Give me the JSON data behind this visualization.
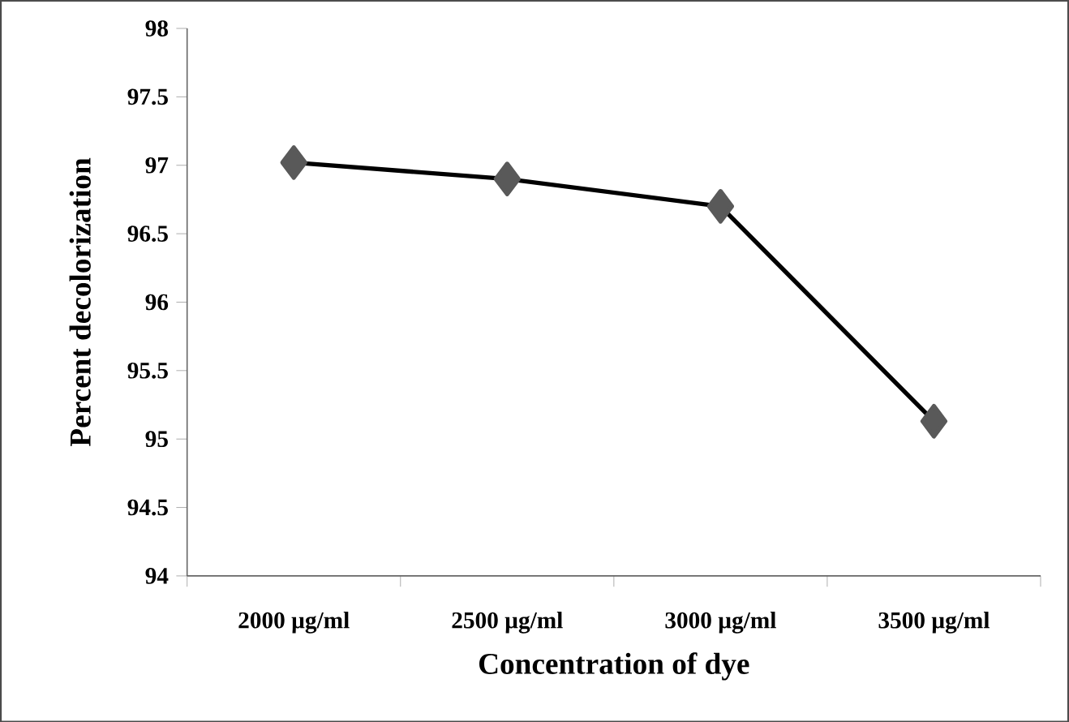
{
  "chart_data": {
    "type": "line",
    "xlabel": "Concentration of dye",
    "ylabel": "Percent decolorization",
    "categories": [
      "2000 µg/ml",
      "2500 µg/ml",
      "3000 µg/ml",
      "3500 µg/ml"
    ],
    "series": [
      {
        "color": "#000000",
        "values": [
          97.02,
          96.9,
          96.7,
          95.13
        ]
      }
    ],
    "ylim": [
      94,
      98
    ],
    "yticks": [
      94,
      94.5,
      95,
      95.5,
      96,
      96.5,
      97,
      97.5,
      98
    ],
    "marker": "diamond",
    "line_style": "solid"
  }
}
